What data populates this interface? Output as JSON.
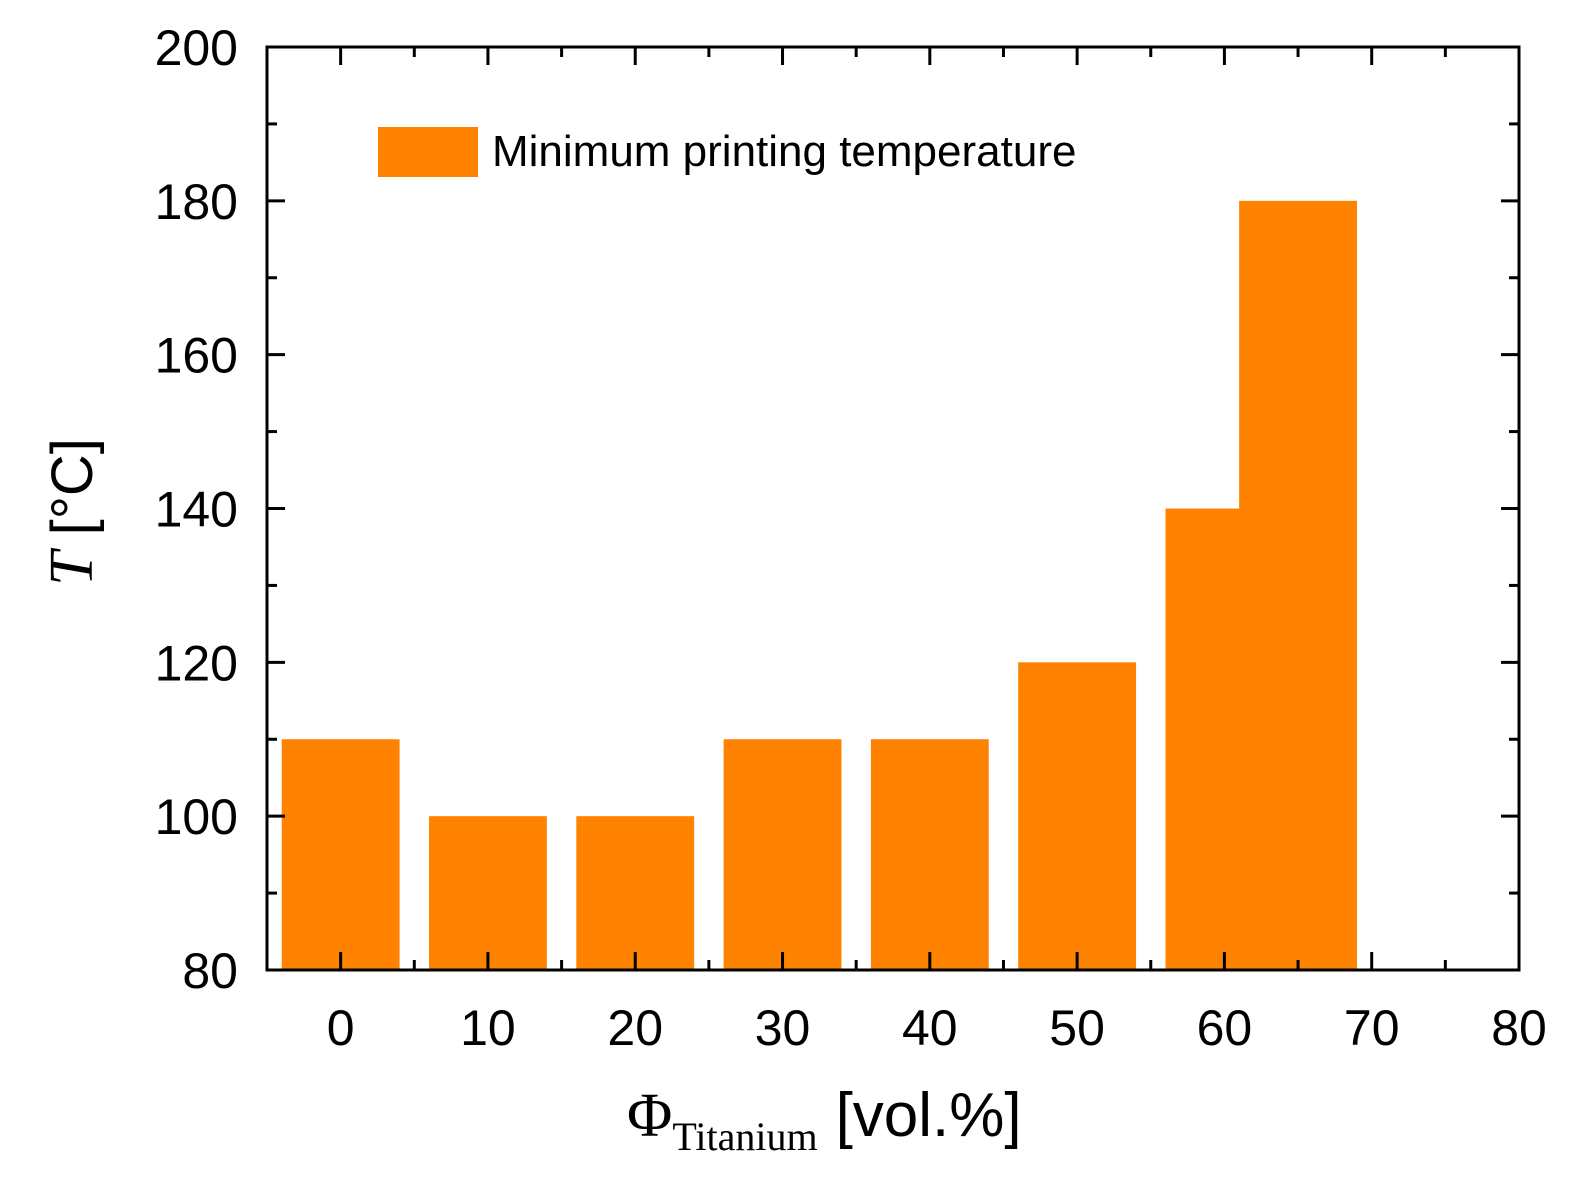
{
  "chart_data": {
    "type": "bar",
    "x": [
      0,
      10,
      20,
      30,
      40,
      50,
      60,
      65
    ],
    "series": [
      {
        "name": "Minimum printing temperature",
        "values": [
          110,
          100,
          100,
          110,
          110,
          120,
          140,
          180
        ],
        "color": "#ff8200"
      }
    ],
    "bar_width": 8,
    "xlim": [
      -5,
      80
    ],
    "ylim": [
      80,
      200
    ],
    "xticks": [
      "0",
      "10",
      "20",
      "30",
      "40",
      "50",
      "60",
      "70",
      "80"
    ],
    "yticks": [
      "80",
      "100",
      "120",
      "140",
      "160",
      "180",
      "200"
    ],
    "xlabel": {
      "symbol": "Φ",
      "subscript": "Titanium",
      "unit": "[vol.%]"
    },
    "ylabel": {
      "symbol": "T",
      "unit": "[°C]"
    },
    "legend": {
      "label": "Minimum printing temperature",
      "position": "top-left"
    }
  }
}
